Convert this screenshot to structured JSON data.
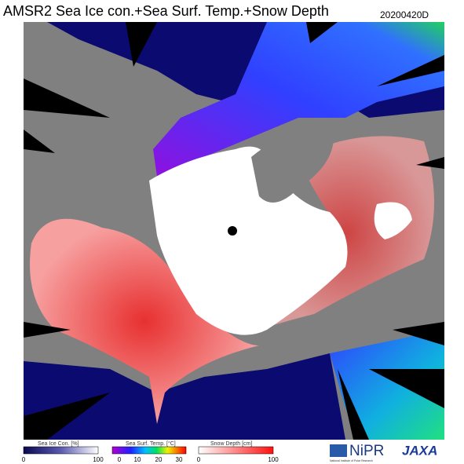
{
  "header": {
    "title": "AMSR2 Sea Ice con.+Sea Surf. Temp.+Snow Depth",
    "date": "20200420D"
  },
  "legends": [
    {
      "label": "Sea Ice Con. [%]",
      "ticks": [
        "0",
        "100"
      ]
    },
    {
      "label": "Sea Surf. Temp. [°C]",
      "ticks": [
        "0",
        "10",
        "20",
        "30"
      ]
    },
    {
      "label": "Snow Depth [cm]",
      "ticks": [
        "0",
        "100"
      ]
    }
  ],
  "logos": {
    "nipr": "NiPR",
    "nipr_sub": "National Institute of Polar Research",
    "jaxa": "JAXA"
  }
}
